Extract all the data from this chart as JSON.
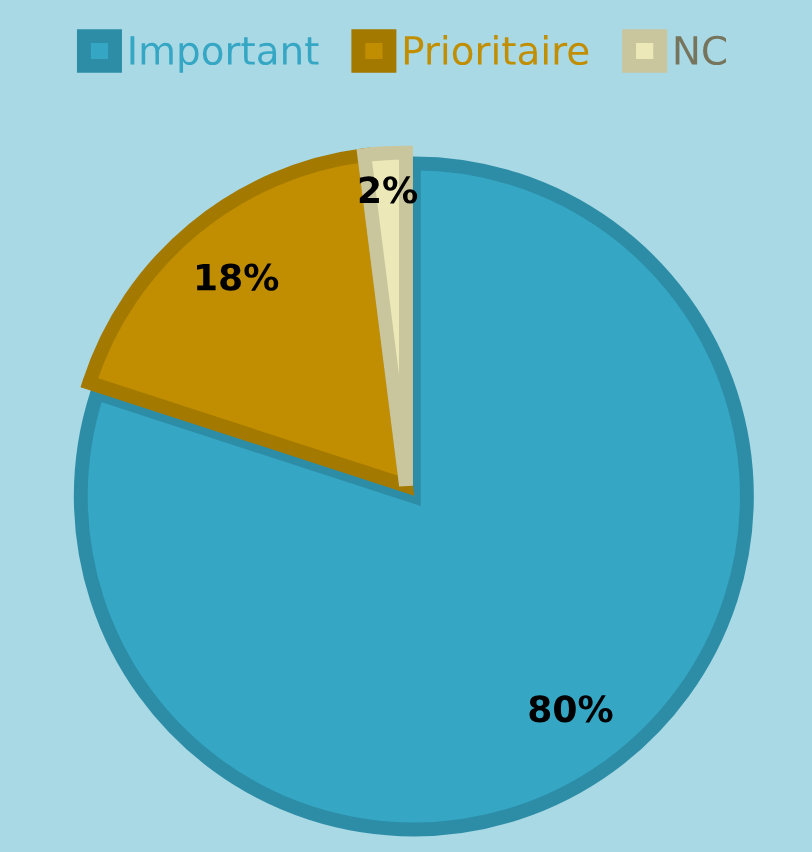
{
  "chart_data": {
    "type": "pie",
    "categories": [
      "Important",
      "Prioritaire",
      "NC"
    ],
    "values": [
      80,
      18,
      2
    ],
    "colors": [
      "#35a6c4",
      "#c08e00",
      "#ece8b8"
    ],
    "value_labels": [
      "80%",
      "18%",
      "2%"
    ],
    "legend": "top"
  }
}
